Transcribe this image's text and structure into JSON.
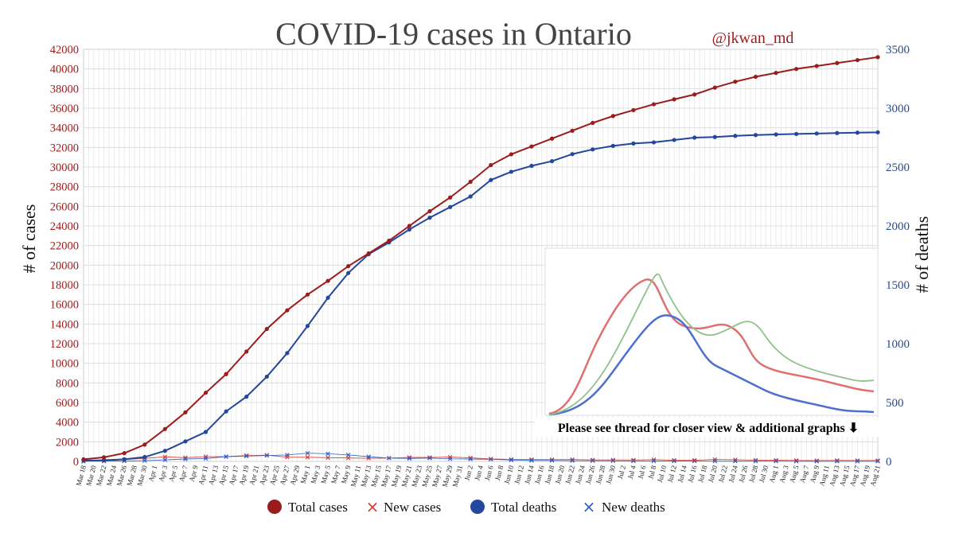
{
  "chart_data": {
    "type": "line",
    "title": "COVID-19 cases in Ontario",
    "handle": "@jkwan_md",
    "ylabel": "# of cases",
    "y2label": "# of deaths",
    "ylim": [
      0,
      42000
    ],
    "y2lim": [
      0,
      3500
    ],
    "yticks": [
      "0",
      "2000",
      "4000",
      "6000",
      "8000",
      "10000",
      "12000",
      "14000",
      "16000",
      "18000",
      "20000",
      "22000",
      "24000",
      "26000",
      "28000",
      "30000",
      "32000",
      "34000",
      "36000",
      "38000",
      "40000",
      "42000"
    ],
    "y2ticks": [
      "0",
      "500",
      "1000",
      "1500",
      "2000",
      "2500",
      "3000",
      "3500"
    ],
    "grid": true,
    "legend_position": "bottom",
    "note": "Please see thread for closer view & additional graphs ⬇",
    "xticks": [
      "Mar 18",
      "Mar 20",
      "Mar 22",
      "Mar 24",
      "Mar 26",
      "Mar 28",
      "Mar 30",
      "Apr 1",
      "Apr 3",
      "Apr 5",
      "Apr 7",
      "Apr 9",
      "Apr 11",
      "Apr 13",
      "Apr 15",
      "Apr 17",
      "Apr 19",
      "Apr 21",
      "Apr 23",
      "Apr 25",
      "Apr 27",
      "Apr 29",
      "May 1",
      "May 3",
      "May 5",
      "May 7",
      "May 9",
      "May 11",
      "May 13",
      "May 15",
      "May 17",
      "May 19",
      "May 21",
      "May 23",
      "May 25",
      "May 27",
      "May 29",
      "May 31",
      "Jun 2",
      "Jun 4",
      "Jun 6",
      "Jun 8",
      "Jun 10",
      "Jun 12",
      "Jun 14",
      "Jun 16",
      "Jun 18",
      "Jun 20",
      "Jun 22",
      "Jun 24",
      "Jun 26",
      "Jun 28",
      "Jun 30",
      "Jul 2",
      "Jul 4",
      "Jul 6",
      "Jul 8",
      "Jul 10",
      "Jul 12",
      "Jul 14",
      "Jul 16",
      "Jul 18",
      "Jul 20",
      "Jul 22",
      "Jul 24",
      "Jul 26",
      "Jul 28",
      "Jul 30",
      "Aug 1",
      "Aug 3",
      "Aug 5",
      "Aug 7",
      "Aug 9",
      "Aug 11",
      "Aug 13",
      "Aug 15",
      "Aug 17",
      "Aug 19",
      "Aug 21"
    ],
    "series": [
      {
        "name": "Total cases",
        "axis": "left",
        "color": "#9b1c1c",
        "marker": "dot",
        "x": [
          "Mar 18",
          "Mar 22",
          "Mar 26",
          "Mar 30",
          "Apr 3",
          "Apr 7",
          "Apr 11",
          "Apr 15",
          "Apr 19",
          "Apr 23",
          "Apr 27",
          "May 1",
          "May 5",
          "May 9",
          "May 13",
          "May 17",
          "May 21",
          "May 25",
          "May 29",
          "Jun 2",
          "Jun 6",
          "Jun 10",
          "Jun 14",
          "Jun 18",
          "Jun 22",
          "Jun 26",
          "Jun 30",
          "Jul 4",
          "Jul 8",
          "Jul 12",
          "Jul 16",
          "Jul 20",
          "Jul 24",
          "Jul 28",
          "Aug 1",
          "Aug 5",
          "Aug 9",
          "Aug 13",
          "Aug 17",
          "Aug 21"
        ],
        "values": [
          210,
          420,
          840,
          1710,
          3300,
          5000,
          7000,
          8900,
          11200,
          13500,
          15400,
          17000,
          18400,
          19900,
          21200,
          22500,
          24000,
          25500,
          26900,
          28500,
          30200,
          31300,
          32100,
          32900,
          33700,
          34500,
          35200,
          35800,
          36400,
          36900,
          37400,
          38100,
          38700,
          39200,
          39600,
          40000,
          40300,
          40600,
          40900,
          41200
        ]
      },
      {
        "name": "New cases",
        "axis": "left",
        "color": "#d63a2f",
        "marker": "x",
        "x": [
          "Mar 18",
          "Mar 22",
          "Mar 26",
          "Mar 30",
          "Apr 3",
          "Apr 7",
          "Apr 11",
          "Apr 15",
          "Apr 19",
          "Apr 23",
          "Apr 27",
          "May 1",
          "May 5",
          "May 9",
          "May 13",
          "May 17",
          "May 21",
          "May 25",
          "May 29",
          "Jun 2",
          "Jun 6",
          "Jun 10",
          "Jun 14",
          "Jun 18",
          "Jun 22",
          "Jun 26",
          "Jun 30",
          "Jul 4",
          "Jul 8",
          "Jul 12",
          "Jul 16",
          "Jul 20",
          "Jul 24",
          "Jul 28",
          "Aug 1",
          "Aug 5",
          "Aug 9",
          "Aug 13",
          "Aug 17",
          "Aug 21"
        ],
        "values": [
          40,
          70,
          170,
          310,
          460,
          380,
          480,
          490,
          600,
          640,
          430,
          420,
          380,
          350,
          320,
          340,
          410,
          400,
          440,
          360,
          250,
          210,
          190,
          180,
          190,
          150,
          150,
          140,
          180,
          120,
          120,
          200,
          170,
          130,
          120,
          100,
          80,
          100,
          90,
          90
        ]
      },
      {
        "name": "Total deaths",
        "axis": "right",
        "color": "#23479c",
        "marker": "dot",
        "x": [
          "Mar 18",
          "Mar 22",
          "Mar 26",
          "Mar 30",
          "Apr 3",
          "Apr 7",
          "Apr 11",
          "Apr 15",
          "Apr 19",
          "Apr 23",
          "Apr 27",
          "May 1",
          "May 5",
          "May 9",
          "May 13",
          "May 17",
          "May 21",
          "May 25",
          "May 29",
          "Jun 2",
          "Jun 6",
          "Jun 10",
          "Jun 14",
          "Jun 18",
          "Jun 22",
          "Jun 26",
          "Jun 30",
          "Jul 4",
          "Jul 8",
          "Jul 12",
          "Jul 16",
          "Jul 20",
          "Jul 24",
          "Jul 28",
          "Aug 1",
          "Aug 5",
          "Aug 9",
          "Aug 13",
          "Aug 17",
          "Aug 21"
        ],
        "values": [
          7,
          10,
          18,
          37,
          90,
          170,
          250,
          425,
          550,
          720,
          920,
          1150,
          1390,
          1600,
          1760,
          1860,
          1970,
          2070,
          2160,
          2250,
          2390,
          2460,
          2510,
          2550,
          2610,
          2650,
          2680,
          2700,
          2710,
          2730,
          2750,
          2755,
          2765,
          2772,
          2777,
          2781,
          2785,
          2789,
          2792,
          2795
        ]
      },
      {
        "name": "New deaths",
        "axis": "right",
        "color": "#2b5dc9",
        "marker": "x",
        "x": [
          "Mar 18",
          "Mar 22",
          "Mar 26",
          "Mar 30",
          "Apr 3",
          "Apr 7",
          "Apr 11",
          "Apr 15",
          "Apr 19",
          "Apr 23",
          "Apr 27",
          "May 1",
          "May 5",
          "May 9",
          "May 13",
          "May 17",
          "May 21",
          "May 25",
          "May 29",
          "Jun 2",
          "Jun 6",
          "Jun 10",
          "Jun 14",
          "Jun 18",
          "Jun 22",
          "Jun 26",
          "Jun 30",
          "Jul 4",
          "Jul 8",
          "Jul 12",
          "Jul 16",
          "Jul 20",
          "Jul 24",
          "Jul 28",
          "Aug 1",
          "Aug 5",
          "Aug 9",
          "Aug 13",
          "Aug 17",
          "Aug 21"
        ],
        "values": [
          1,
          2,
          3,
          6,
          13,
          20,
          25,
          40,
          45,
          50,
          55,
          70,
          65,
          55,
          40,
          28,
          25,
          28,
          22,
          20,
          18,
          12,
          8,
          8,
          6,
          6,
          5,
          4,
          3,
          3,
          3,
          2,
          2,
          2,
          2,
          1,
          1,
          1,
          1,
          1
        ]
      }
    ]
  }
}
